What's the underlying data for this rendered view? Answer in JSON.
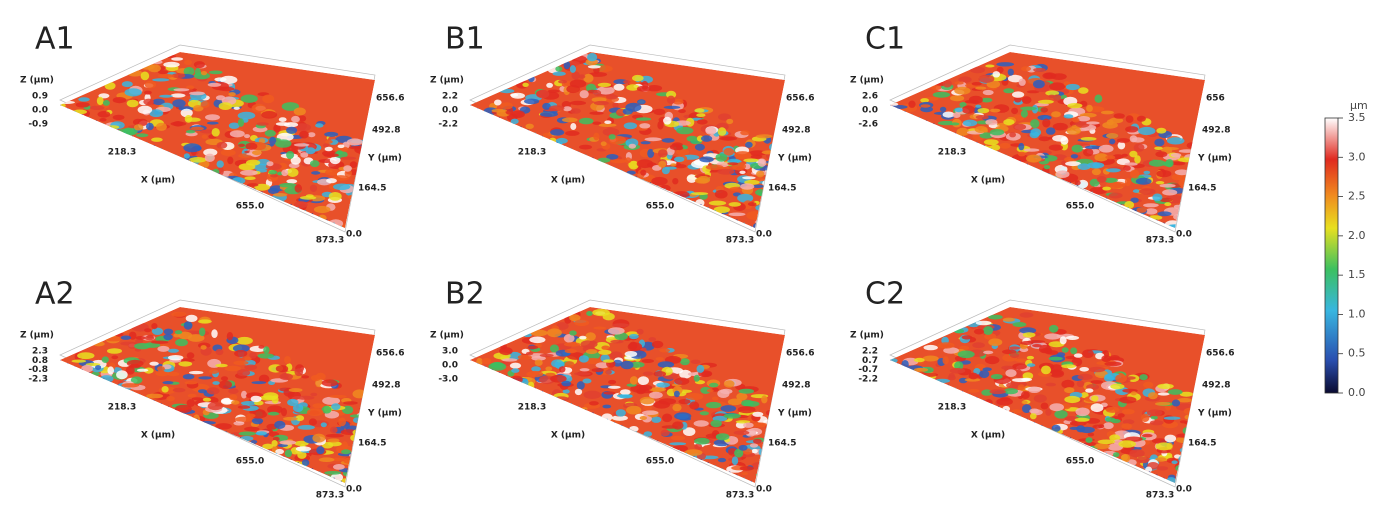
{
  "panels": [
    {
      "label": "A1",
      "z_axis_label": "Z (μm)",
      "x_axis_label": "X (μm)",
      "y_axis_label": "Y (μm)",
      "z_ticks": [
        "0.9",
        "0.0",
        "-0.9"
      ],
      "x_ticks": [
        "218.3",
        "655.0",
        "873.3"
      ],
      "y_ticks": [
        "656.6",
        "492.8",
        "164.5",
        "0.0"
      ]
    },
    {
      "label": "B1",
      "z_axis_label": "Z (μm)",
      "x_axis_label": "X (μm)",
      "y_axis_label": "Y (μm)",
      "z_ticks": [
        "2.2",
        "0.0",
        "-2.2"
      ],
      "x_ticks": [
        "218.3",
        "655.0",
        "873.3"
      ],
      "y_ticks": [
        "656.6",
        "492.8",
        "164.5",
        "0.0"
      ]
    },
    {
      "label": "C1",
      "z_axis_label": "Z (μm)",
      "x_axis_label": "X (μm)",
      "y_axis_label": "Y (μm)",
      "z_ticks": [
        "2.6",
        "0.0",
        "-2.6"
      ],
      "x_ticks": [
        "218.3",
        "655.0",
        "873.3"
      ],
      "y_ticks": [
        "656",
        "492.8",
        "164.5",
        "0.0"
      ]
    },
    {
      "label": "A2",
      "z_axis_label": "Z (μm)",
      "x_axis_label": "X (μm)",
      "y_axis_label": "Y (μm)",
      "z_ticks": [
        "2.3",
        "0.8",
        "-0.8",
        "-2.3"
      ],
      "x_ticks": [
        "218.3",
        "655.0",
        "873.3"
      ],
      "y_ticks": [
        "656.6",
        "492.8",
        "164.5",
        "0.0"
      ]
    },
    {
      "label": "B2",
      "z_axis_label": "Z (μm)",
      "x_axis_label": "X (μm)",
      "y_axis_label": "Y (μm)",
      "z_ticks": [
        "3.0",
        "0.0",
        "-3.0"
      ],
      "x_ticks": [
        "218.3",
        "655.0",
        "873.3"
      ],
      "y_ticks": [
        "656.6",
        "492.8",
        "164.5",
        "0.0"
      ]
    },
    {
      "label": "C2",
      "z_axis_label": "Z (μm)",
      "x_axis_label": "X (μm)",
      "y_axis_label": "Y (μm)",
      "z_ticks": [
        "2.2",
        "0.7",
        "-0.7",
        "-2.2"
      ],
      "x_ticks": [
        "218.3",
        "655.0",
        "873.3"
      ],
      "y_ticks": [
        "656.6",
        "492.8",
        "164.5",
        "0.0"
      ]
    }
  ],
  "colorbar": {
    "unit": "μm",
    "range": [
      0,
      3.5
    ],
    "ticks": [
      {
        "value": 0,
        "label": "0.0"
      },
      {
        "value": 0.5,
        "label": "0.5"
      },
      {
        "value": 1,
        "label": "1.0"
      },
      {
        "value": 1.5,
        "label": "1.5"
      },
      {
        "value": 2,
        "label": "2.0"
      },
      {
        "value": 2.5,
        "label": "2.5"
      },
      {
        "value": 3,
        "label": "3.0"
      },
      {
        "value": 3.5,
        "label": "3.5"
      }
    ]
  }
}
